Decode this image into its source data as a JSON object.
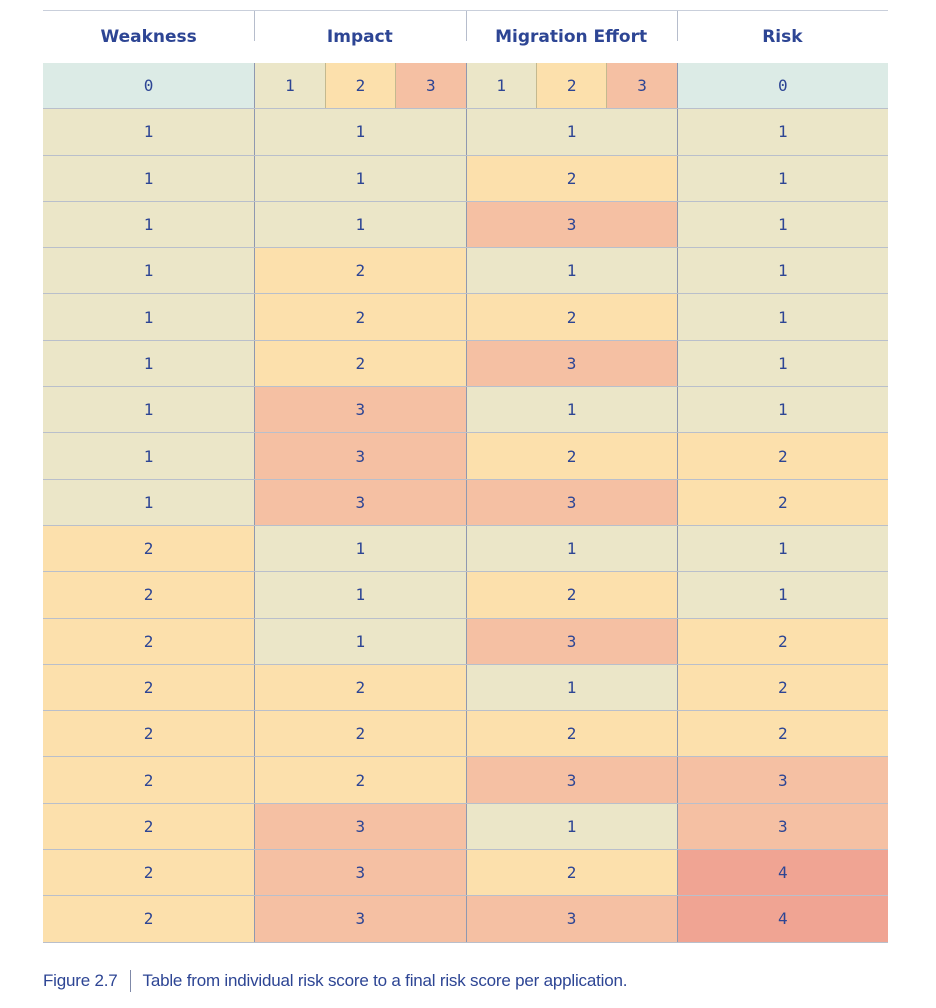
{
  "colors": {
    "header_text": "#2d4594",
    "zero": "#dcebe6",
    "level1": "#ebe6c8",
    "level2": "#fce0ac",
    "level3": "#f5c0a3",
    "level4": "#f0a493"
  },
  "table": {
    "headers": [
      "Weakness",
      "Impact",
      "Migration Effort",
      "Risk"
    ],
    "legend_row": {
      "weakness": "0",
      "impact": [
        "1",
        "2",
        "3"
      ],
      "effort": [
        "1",
        "2",
        "3"
      ],
      "risk": "0"
    },
    "rows": [
      [
        "1",
        "1",
        "1",
        "1"
      ],
      [
        "1",
        "1",
        "2",
        "1"
      ],
      [
        "1",
        "1",
        "3",
        "1"
      ],
      [
        "1",
        "2",
        "1",
        "1"
      ],
      [
        "1",
        "2",
        "2",
        "1"
      ],
      [
        "1",
        "2",
        "3",
        "1"
      ],
      [
        "1",
        "3",
        "1",
        "1"
      ],
      [
        "1",
        "3",
        "2",
        "2"
      ],
      [
        "1",
        "3",
        "3",
        "2"
      ],
      [
        "2",
        "1",
        "1",
        "1"
      ],
      [
        "2",
        "1",
        "2",
        "1"
      ],
      [
        "2",
        "1",
        "3",
        "2"
      ],
      [
        "2",
        "2",
        "1",
        "2"
      ],
      [
        "2",
        "2",
        "2",
        "2"
      ],
      [
        "2",
        "2",
        "3",
        "3"
      ],
      [
        "2",
        "3",
        "1",
        "3"
      ],
      [
        "2",
        "3",
        "2",
        "4"
      ],
      [
        "2",
        "3",
        "3",
        "4"
      ]
    ]
  },
  "caption": {
    "figure": "Figure 2.7",
    "text": "Table from individual risk score to a final risk score per application."
  }
}
